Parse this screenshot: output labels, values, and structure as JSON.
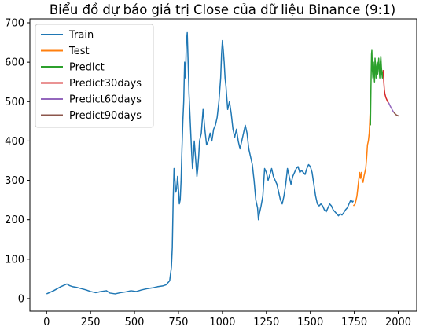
{
  "chart_data": {
    "type": "line",
    "title": "Biểu đồ dự báo giá trị Close của dữ liệu Binance (9:1)",
    "xlabel": "",
    "ylabel": "",
    "xlim": [
      -95,
      2105
    ],
    "ylim": [
      -32,
      710
    ],
    "x_ticks": [
      0,
      250,
      500,
      750,
      1000,
      1250,
      1500,
      1750,
      2000
    ],
    "y_ticks": [
      0,
      100,
      200,
      300,
      400,
      500,
      600,
      700
    ],
    "grid": false,
    "legend_position": "top-left",
    "series": [
      {
        "name": "Train",
        "color": "#1f77b4",
        "points": [
          [
            0,
            12
          ],
          [
            20,
            16
          ],
          [
            40,
            20
          ],
          [
            60,
            25
          ],
          [
            80,
            30
          ],
          [
            100,
            34
          ],
          [
            115,
            37
          ],
          [
            130,
            33
          ],
          [
            150,
            30
          ],
          [
            175,
            28
          ],
          [
            200,
            25
          ],
          [
            225,
            22
          ],
          [
            250,
            18
          ],
          [
            280,
            15
          ],
          [
            310,
            18
          ],
          [
            340,
            20
          ],
          [
            360,
            14
          ],
          [
            390,
            12
          ],
          [
            420,
            15
          ],
          [
            450,
            17
          ],
          [
            480,
            20
          ],
          [
            510,
            18
          ],
          [
            540,
            22
          ],
          [
            570,
            25
          ],
          [
            600,
            27
          ],
          [
            630,
            30
          ],
          [
            660,
            32
          ],
          [
            680,
            35
          ],
          [
            700,
            45
          ],
          [
            710,
            80
          ],
          [
            715,
            130
          ],
          [
            720,
            250
          ],
          [
            725,
            330
          ],
          [
            730,
            300
          ],
          [
            735,
            270
          ],
          [
            740,
            280
          ],
          [
            745,
            310
          ],
          [
            750,
            280
          ],
          [
            755,
            240
          ],
          [
            760,
            250
          ],
          [
            765,
            300
          ],
          [
            770,
            380
          ],
          [
            775,
            450
          ],
          [
            780,
            500
          ],
          [
            785,
            600
          ],
          [
            790,
            560
          ],
          [
            795,
            650
          ],
          [
            800,
            675
          ],
          [
            805,
            600
          ],
          [
            810,
            520
          ],
          [
            815,
            470
          ],
          [
            820,
            420
          ],
          [
            825,
            370
          ],
          [
            830,
            330
          ],
          [
            835,
            360
          ],
          [
            840,
            400
          ],
          [
            845,
            370
          ],
          [
            850,
            340
          ],
          [
            855,
            310
          ],
          [
            860,
            330
          ],
          [
            865,
            360
          ],
          [
            870,
            400
          ],
          [
            880,
            420
          ],
          [
            890,
            480
          ],
          [
            900,
            430
          ],
          [
            910,
            390
          ],
          [
            920,
            400
          ],
          [
            930,
            420
          ],
          [
            940,
            400
          ],
          [
            950,
            430
          ],
          [
            960,
            440
          ],
          [
            970,
            460
          ],
          [
            980,
            500
          ],
          [
            990,
            560
          ],
          [
            995,
            620
          ],
          [
            1000,
            655
          ],
          [
            1005,
            630
          ],
          [
            1010,
            600
          ],
          [
            1015,
            560
          ],
          [
            1020,
            540
          ],
          [
            1030,
            480
          ],
          [
            1040,
            500
          ],
          [
            1050,
            470
          ],
          [
            1060,
            430
          ],
          [
            1070,
            410
          ],
          [
            1080,
            430
          ],
          [
            1090,
            400
          ],
          [
            1100,
            380
          ],
          [
            1110,
            400
          ],
          [
            1120,
            420
          ],
          [
            1130,
            440
          ],
          [
            1140,
            420
          ],
          [
            1150,
            380
          ],
          [
            1160,
            360
          ],
          [
            1170,
            340
          ],
          [
            1180,
            300
          ],
          [
            1190,
            250
          ],
          [
            1200,
            230
          ],
          [
            1205,
            200
          ],
          [
            1210,
            215
          ],
          [
            1220,
            235
          ],
          [
            1230,
            260
          ],
          [
            1240,
            330
          ],
          [
            1250,
            320
          ],
          [
            1260,
            300
          ],
          [
            1270,
            315
          ],
          [
            1280,
            330
          ],
          [
            1290,
            310
          ],
          [
            1300,
            300
          ],
          [
            1310,
            290
          ],
          [
            1320,
            270
          ],
          [
            1330,
            250
          ],
          [
            1340,
            240
          ],
          [
            1350,
            260
          ],
          [
            1360,
            290
          ],
          [
            1370,
            330
          ],
          [
            1380,
            310
          ],
          [
            1390,
            290
          ],
          [
            1400,
            310
          ],
          [
            1410,
            320
          ],
          [
            1420,
            330
          ],
          [
            1430,
            335
          ],
          [
            1440,
            320
          ],
          [
            1450,
            325
          ],
          [
            1460,
            320
          ],
          [
            1470,
            315
          ],
          [
            1480,
            330
          ],
          [
            1490,
            340
          ],
          [
            1500,
            335
          ],
          [
            1510,
            320
          ],
          [
            1520,
            290
          ],
          [
            1530,
            260
          ],
          [
            1540,
            240
          ],
          [
            1550,
            235
          ],
          [
            1560,
            240
          ],
          [
            1570,
            235
          ],
          [
            1580,
            225
          ],
          [
            1590,
            220
          ],
          [
            1600,
            230
          ],
          [
            1610,
            240
          ],
          [
            1620,
            235
          ],
          [
            1630,
            225
          ],
          [
            1640,
            220
          ],
          [
            1650,
            215
          ],
          [
            1660,
            210
          ],
          [
            1670,
            215
          ],
          [
            1680,
            212
          ],
          [
            1690,
            218
          ],
          [
            1700,
            225
          ],
          [
            1710,
            230
          ],
          [
            1720,
            240
          ],
          [
            1730,
            250
          ],
          [
            1740,
            245
          ],
          [
            1745,
            248
          ]
        ]
      },
      {
        "name": "Test",
        "color": "#ff7f0e",
        "points": [
          [
            1745,
            235
          ],
          [
            1755,
            240
          ],
          [
            1765,
            260
          ],
          [
            1775,
            300
          ],
          [
            1780,
            320
          ],
          [
            1785,
            305
          ],
          [
            1790,
            320
          ],
          [
            1795,
            300
          ],
          [
            1800,
            295
          ],
          [
            1805,
            310
          ],
          [
            1810,
            320
          ],
          [
            1815,
            330
          ],
          [
            1820,
            355
          ],
          [
            1825,
            390
          ],
          [
            1830,
            400
          ],
          [
            1835,
            420
          ],
          [
            1840,
            470
          ],
          [
            1842,
            440
          ]
        ]
      },
      {
        "name": "Predict",
        "color": "#2ca02c",
        "points": [
          [
            1842,
            440
          ],
          [
            1845,
            540
          ],
          [
            1848,
            620
          ],
          [
            1850,
            630
          ],
          [
            1853,
            580
          ],
          [
            1856,
            560
          ],
          [
            1859,
            600
          ],
          [
            1862,
            570
          ],
          [
            1865,
            550
          ],
          [
            1868,
            610
          ],
          [
            1871,
            590
          ],
          [
            1874,
            560
          ],
          [
            1877,
            585
          ],
          [
            1880,
            600
          ],
          [
            1883,
            570
          ],
          [
            1886,
            590
          ],
          [
            1889,
            610
          ],
          [
            1892,
            580
          ],
          [
            1895,
            560
          ],
          [
            1898,
            600
          ],
          [
            1901,
            615
          ],
          [
            1904,
            590
          ],
          [
            1907,
            570
          ],
          [
            1910,
            560
          ],
          [
            1913,
            575
          ],
          [
            1915,
            580
          ]
        ]
      },
      {
        "name": "Predict30days",
        "color": "#d62728",
        "points": [
          [
            1915,
            580
          ],
          [
            1918,
            550
          ],
          [
            1921,
            530
          ],
          [
            1924,
            520
          ],
          [
            1927,
            515
          ],
          [
            1930,
            510
          ],
          [
            1935,
            505
          ],
          [
            1940,
            500
          ],
          [
            1945,
            497
          ]
        ]
      },
      {
        "name": "Predict60days",
        "color": "#9467bd",
        "points": [
          [
            1945,
            497
          ],
          [
            1950,
            493
          ],
          [
            1955,
            488
          ],
          [
            1960,
            484
          ],
          [
            1965,
            480
          ],
          [
            1970,
            476
          ],
          [
            1975,
            473
          ]
        ]
      },
      {
        "name": "Predict90days",
        "color": "#8c564b",
        "points": [
          [
            1975,
            473
          ],
          [
            1980,
            470
          ],
          [
            1985,
            468
          ],
          [
            1990,
            466
          ],
          [
            1995,
            465
          ],
          [
            2000,
            464
          ],
          [
            2005,
            463
          ]
        ]
      }
    ]
  }
}
